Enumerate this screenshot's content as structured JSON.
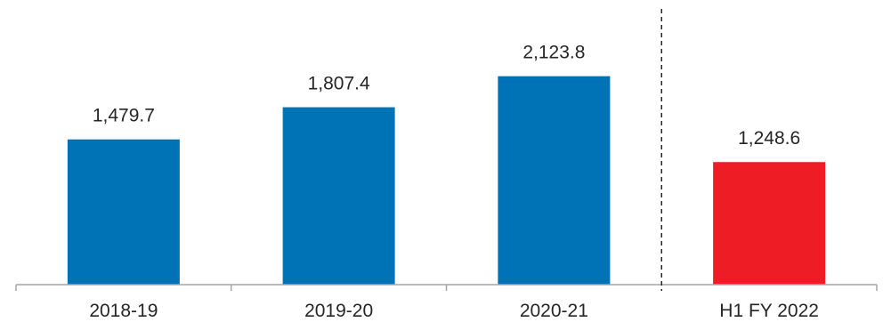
{
  "chart_data": {
    "type": "bar",
    "title": "",
    "xlabel": "",
    "ylabel": "",
    "categories": [
      "2018-19",
      "2019-20",
      "2020-21",
      "H1 FY 2022"
    ],
    "values": [
      1479.7,
      1807.4,
      2123.8,
      1248.6
    ],
    "value_labels": [
      "1,479.7",
      "1,807.4",
      "2,123.8",
      "1,248.6"
    ],
    "bar_colors": [
      "#0072b6",
      "#0072b6",
      "#0072b6",
      "#ee1c25"
    ],
    "ylim": [
      0,
      2900
    ],
    "grid": false,
    "legend": "none",
    "separator": "dashed vertical line between 2020-21 and H1 FY 2022"
  }
}
